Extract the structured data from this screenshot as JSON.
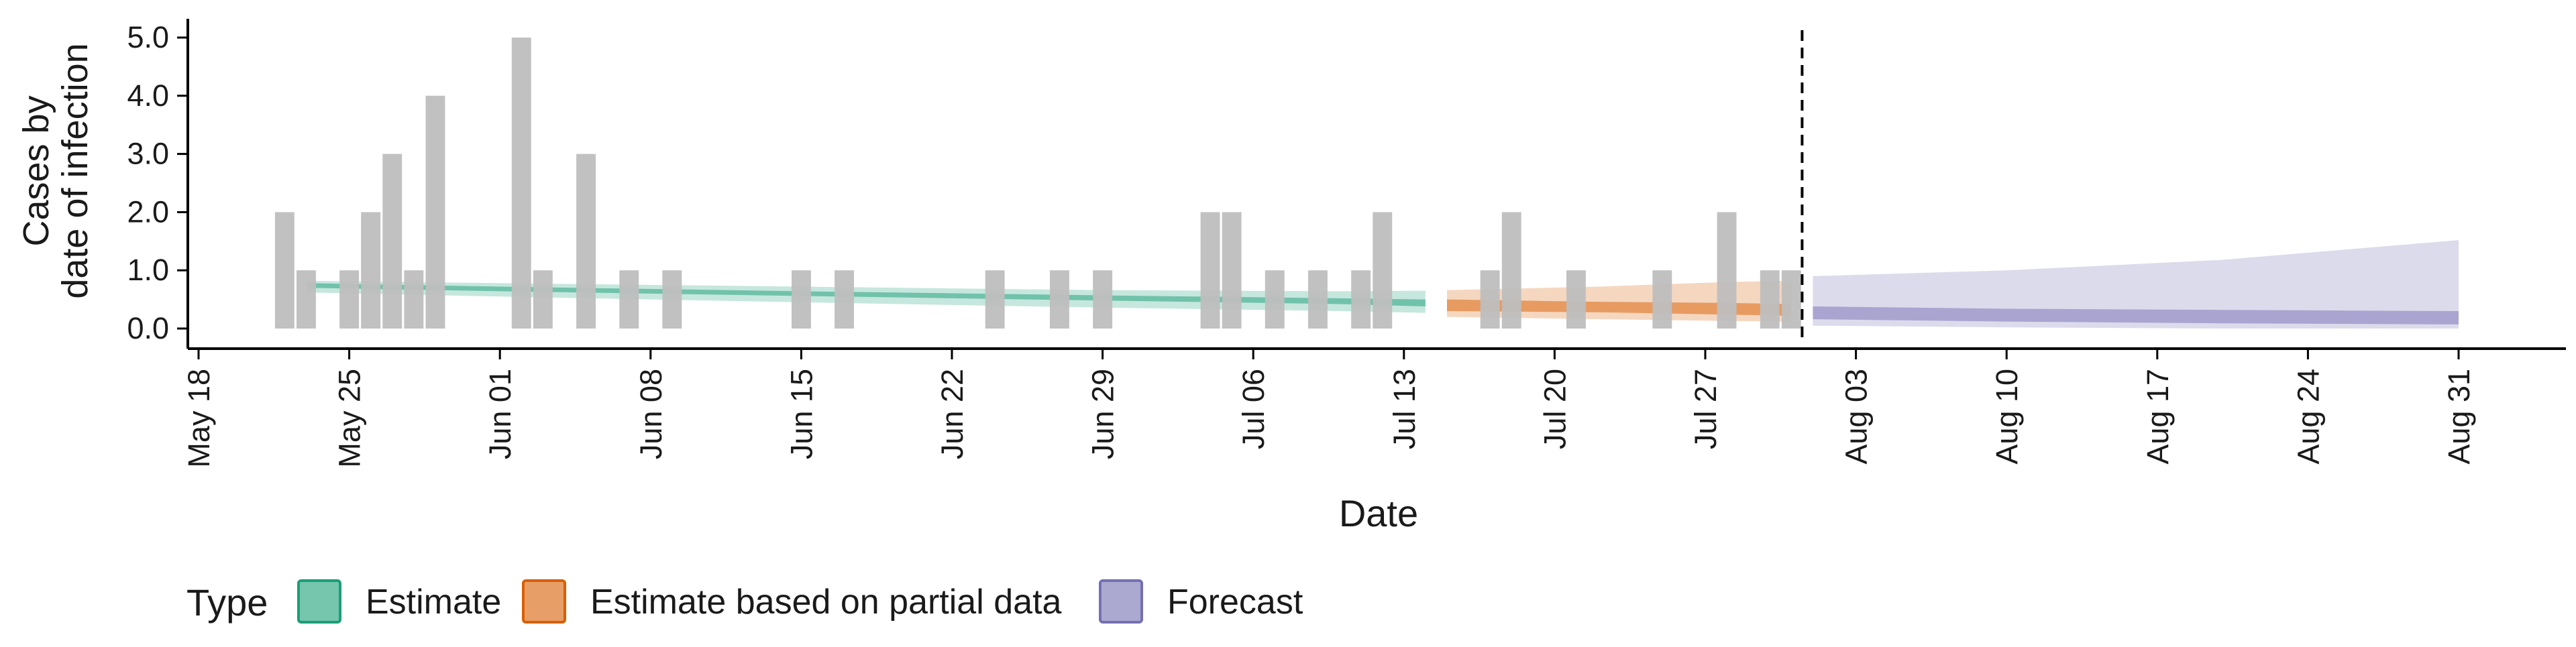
{
  "chart_data": {
    "type": "bar",
    "xlabel": "Date",
    "ylabel_lines": [
      "Cases by",
      "date of infection"
    ],
    "ylim": [
      0,
      5
    ],
    "yticks": [
      "0.0",
      "1.0",
      "2.0",
      "3.0",
      "4.0",
      "5.0"
    ],
    "xaxis_dates": [
      "May 18",
      "May 25",
      "Jun 01",
      "Jun 08",
      "Jun 15",
      "Jun 22",
      "Jun 29",
      "Jul 06",
      "Jul 13",
      "Jul 20",
      "Jul 27",
      "Aug 03",
      "Aug 10",
      "Aug 17",
      "Aug 24",
      "Aug 31"
    ],
    "vline_date": "Jul 31",
    "reported_cases": [
      {
        "date": "May 22",
        "value": 2
      },
      {
        "date": "May 23",
        "value": 1
      },
      {
        "date": "May 25",
        "value": 1
      },
      {
        "date": "May 26",
        "value": 2
      },
      {
        "date": "May 27",
        "value": 3
      },
      {
        "date": "May 28",
        "value": 1
      },
      {
        "date": "May 29",
        "value": 4
      },
      {
        "date": "Jun 02",
        "value": 5
      },
      {
        "date": "Jun 03",
        "value": 1
      },
      {
        "date": "Jun 05",
        "value": 3
      },
      {
        "date": "Jun 07",
        "value": 1
      },
      {
        "date": "Jun 09",
        "value": 1
      },
      {
        "date": "Jun 15",
        "value": 1
      },
      {
        "date": "Jun 17",
        "value": 1
      },
      {
        "date": "Jun 24",
        "value": 1
      },
      {
        "date": "Jun 27",
        "value": 1
      },
      {
        "date": "Jun 29",
        "value": 1
      },
      {
        "date": "Jul 04",
        "value": 2
      },
      {
        "date": "Jul 05",
        "value": 2
      },
      {
        "date": "Jul 07",
        "value": 1
      },
      {
        "date": "Jul 09",
        "value": 1
      },
      {
        "date": "Jul 11",
        "value": 1
      },
      {
        "date": "Jul 12",
        "value": 2
      },
      {
        "date": "Jul 17",
        "value": 1
      },
      {
        "date": "Jul 18",
        "value": 2
      },
      {
        "date": "Jul 21",
        "value": 1
      },
      {
        "date": "Jul 25",
        "value": 1
      },
      {
        "date": "Jul 28",
        "value": 2
      },
      {
        "date": "Jul 30",
        "value": 1
      },
      {
        "date": "Jul 31",
        "value": 1
      }
    ],
    "series": [
      {
        "name": "Estimate",
        "color": "#1b9e77",
        "points": [
          {
            "date": "May 23",
            "lower90": 0.62,
            "upper90": 0.82,
            "lower50": 0.7,
            "upper50": 0.78
          },
          {
            "date": "Jun 01",
            "lower90": 0.55,
            "upper90": 0.78,
            "lower50": 0.64,
            "upper50": 0.72
          },
          {
            "date": "Jun 15",
            "lower90": 0.45,
            "upper90": 0.72,
            "lower50": 0.56,
            "upper50": 0.64
          },
          {
            "date": "Jun 29",
            "lower90": 0.36,
            "upper90": 0.66,
            "lower50": 0.48,
            "upper50": 0.57
          },
          {
            "date": "Jul 10",
            "lower90": 0.3,
            "upper90": 0.64,
            "lower50": 0.42,
            "upper50": 0.52
          },
          {
            "date": "Jul 14",
            "lower90": 0.27,
            "upper90": 0.65,
            "lower50": 0.38,
            "upper50": 0.5
          }
        ]
      },
      {
        "name": "Estimate based on partial data",
        "color": "#d95f02",
        "points": [
          {
            "date": "Jul 15",
            "lower90": 0.2,
            "upper90": 0.66,
            "lower50": 0.3,
            "upper50": 0.5
          },
          {
            "date": "Jul 22",
            "lower90": 0.16,
            "upper90": 0.72,
            "lower50": 0.28,
            "upper50": 0.46
          },
          {
            "date": "Jul 28",
            "lower90": 0.13,
            "upper90": 0.8,
            "lower50": 0.24,
            "upper50": 0.44
          },
          {
            "date": "Jul 31",
            "lower90": 0.12,
            "upper90": 0.82,
            "lower50": 0.22,
            "upper50": 0.42
          }
        ]
      },
      {
        "name": "Forecast",
        "color": "#7570b3",
        "points": [
          {
            "date": "Aug 01",
            "lower90": 0.05,
            "upper90": 0.9,
            "lower50": 0.16,
            "upper50": 0.38
          },
          {
            "date": "Aug 10",
            "lower90": 0.02,
            "upper90": 1.0,
            "lower50": 0.12,
            "upper50": 0.34
          },
          {
            "date": "Aug 20",
            "lower90": 0.0,
            "upper90": 1.18,
            "lower50": 0.09,
            "upper50": 0.32
          },
          {
            "date": "Aug 31",
            "lower90": 0.0,
            "upper90": 1.52,
            "lower50": 0.07,
            "upper50": 0.3
          }
        ]
      }
    ],
    "legend": {
      "title": "Type",
      "position": "bottom-left",
      "items": [
        "Estimate",
        "Estimate based on partial data",
        "Forecast"
      ]
    },
    "grid": false
  },
  "colors": {
    "bars": "#bebebe",
    "axis": "#000000",
    "vline": "#000000"
  }
}
